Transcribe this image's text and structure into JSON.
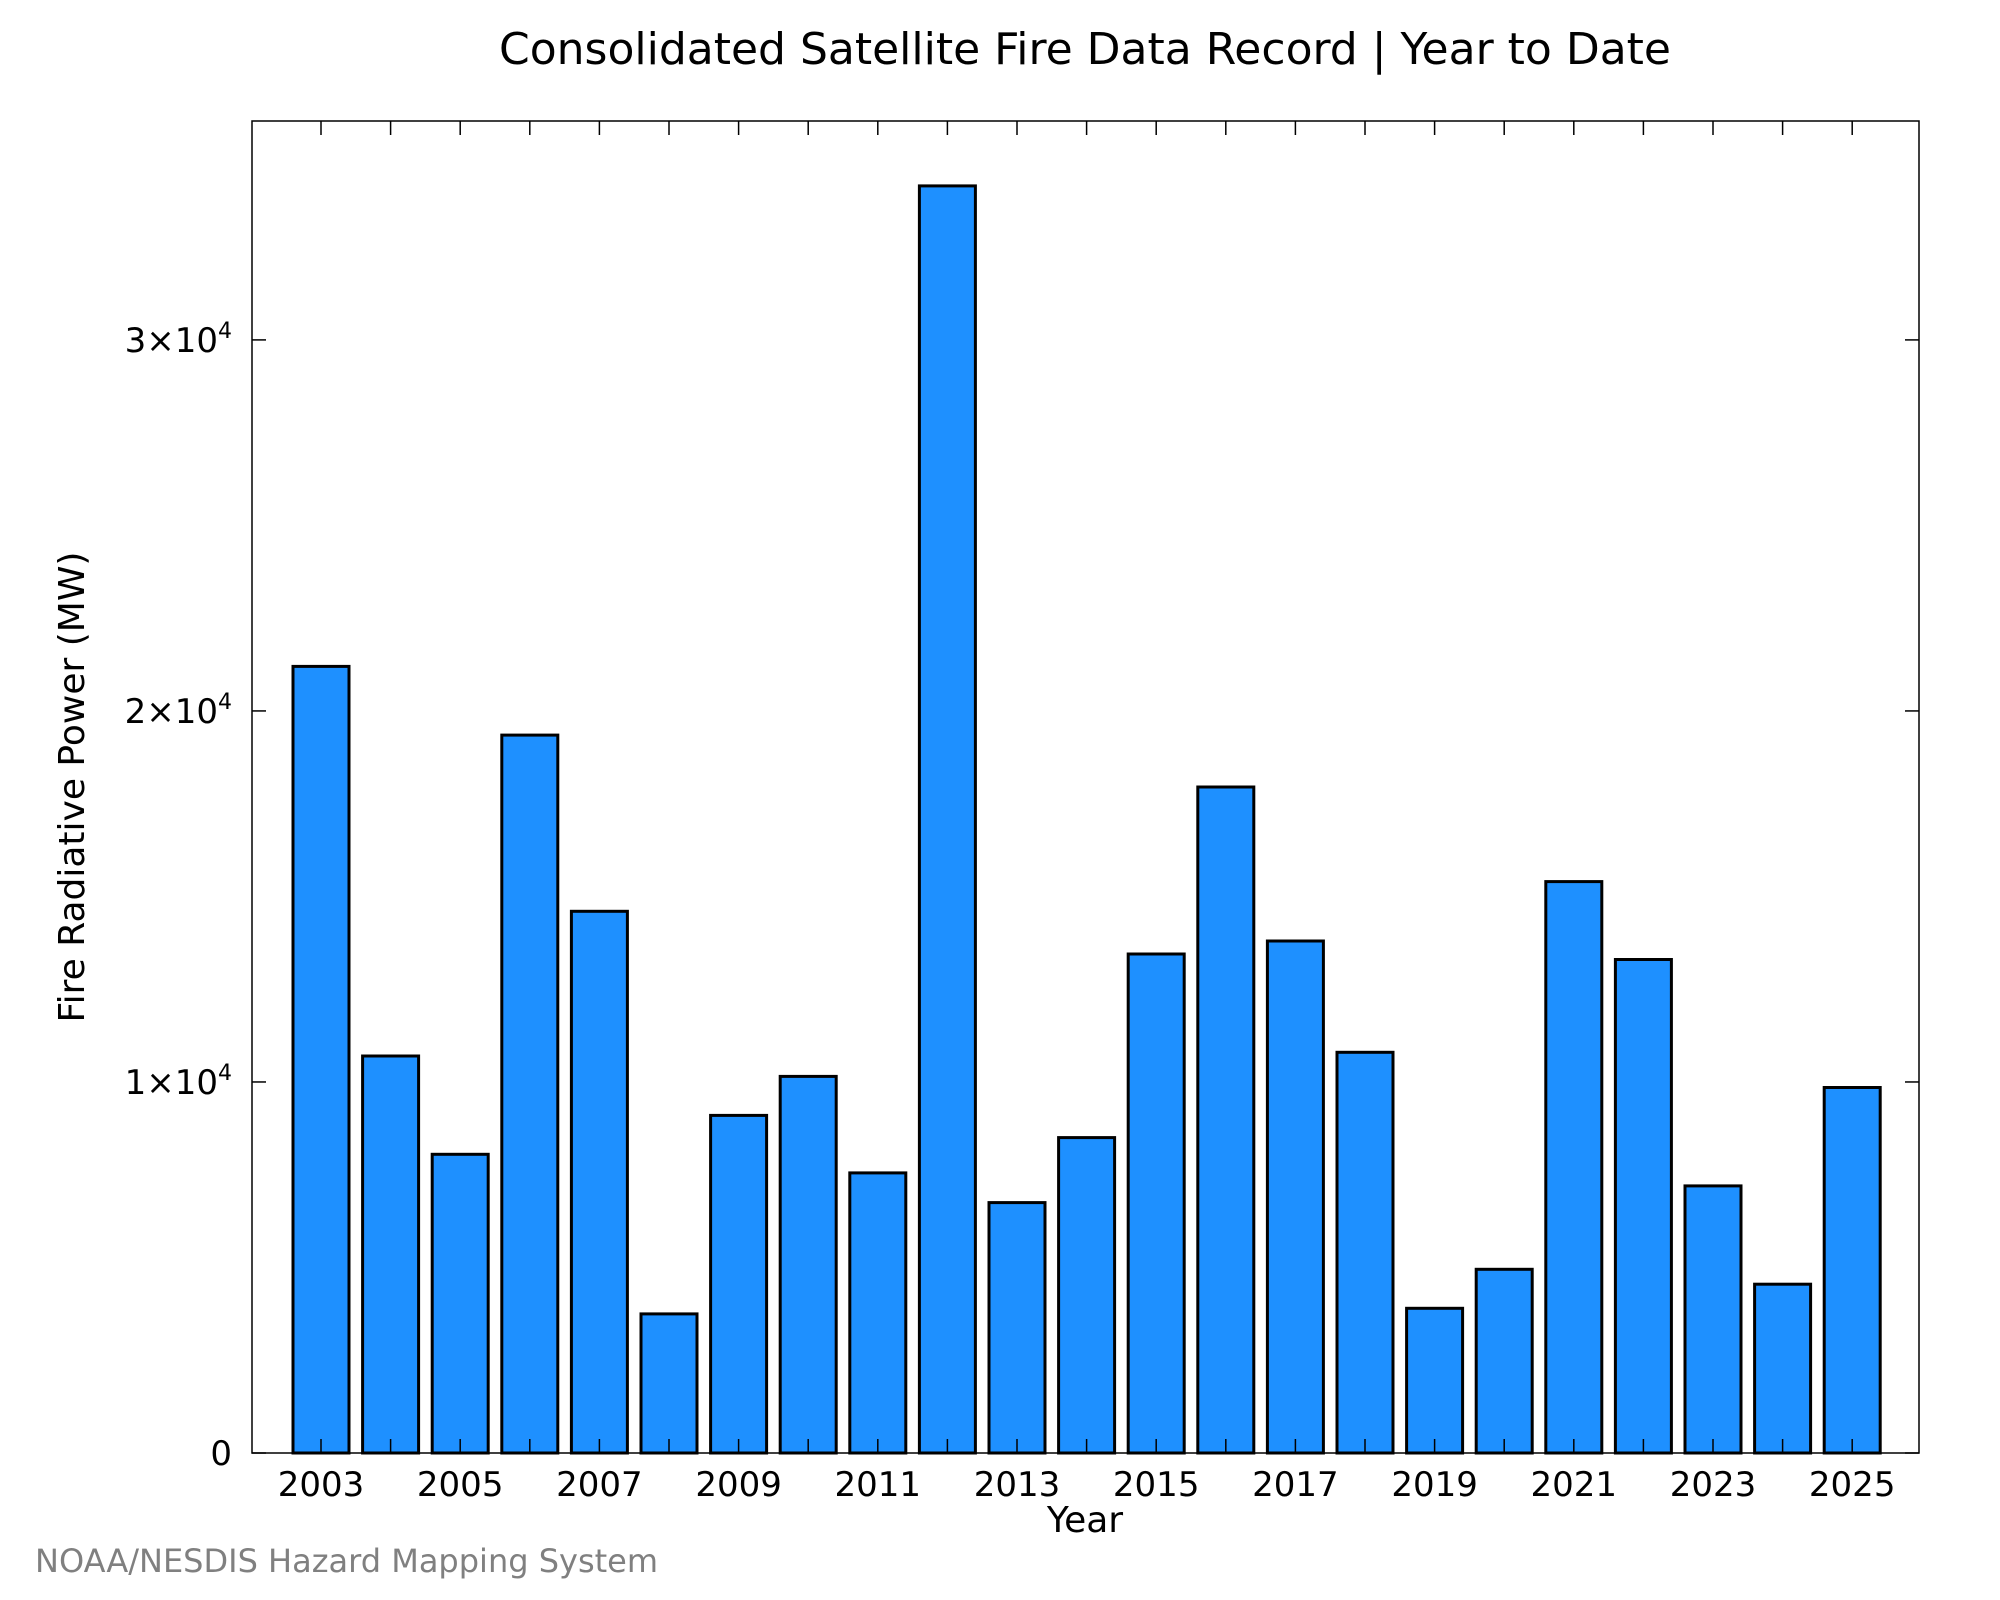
{
  "chart_data": {
    "type": "bar",
    "title": "Consolidated Satellite Fire Data Record | Year to Date",
    "xlabel": "Year",
    "ylabel": "Fire Radiative Power (MW)",
    "categories": [
      "2003",
      "2004",
      "2005",
      "2006",
      "2007",
      "2008",
      "2009",
      "2010",
      "2011",
      "2012",
      "2013",
      "2014",
      "2015",
      "2016",
      "2017",
      "2018",
      "2019",
      "2020",
      "2021",
      "2022",
      "2023",
      "2024",
      "2025"
    ],
    "values": [
      21200,
      10700,
      8050,
      19350,
      14600,
      3750,
      9100,
      10150,
      7550,
      34150,
      6750,
      8500,
      13450,
      17950,
      13800,
      10800,
      3900,
      4950,
      15400,
      13300,
      7200,
      4550,
      9850
    ],
    "xtick_labels": [
      "2003",
      "2005",
      "2007",
      "2009",
      "2011",
      "2013",
      "2015",
      "2017",
      "2019",
      "2021",
      "2023",
      "2025"
    ],
    "yticks": [
      {
        "value": 0,
        "mantissa": "0",
        "exponent": ""
      },
      {
        "value": 10000,
        "mantissa": "1×10",
        "exponent": "4"
      },
      {
        "value": 20000,
        "mantissa": "2×10",
        "exponent": "4"
      },
      {
        "value": 30000,
        "mantissa": "3×10",
        "exponent": "4"
      }
    ],
    "ylim": [
      0,
      35900
    ],
    "grid": false,
    "bar_color": "#1e90ff",
    "edge_color": "#000000"
  },
  "footer": {
    "credit": "NOAA/NESDIS Hazard Mapping System"
  }
}
